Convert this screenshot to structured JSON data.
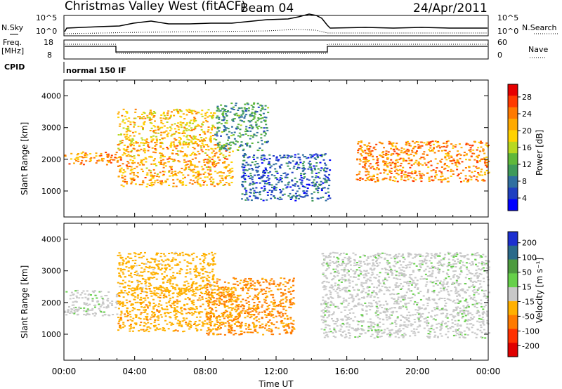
{
  "header": {
    "station": "Christmas Valley West (fitACF)",
    "beam": "Beam 04",
    "date": "24/Apr/2011"
  },
  "summary_panels": {
    "left_labels": [
      "N.Sky",
      "Freq.",
      "[MHz]",
      "CPID"
    ],
    "nsky_ticks": [
      "10^5",
      "10^0"
    ],
    "freq_ticks": [
      "18",
      "8"
    ],
    "right_labels": [
      "N.Search",
      "Nave"
    ],
    "nsearch_ticks": [
      "10^5",
      "10^0"
    ],
    "nave_ticks": [
      "60",
      "0"
    ],
    "cpid_text": "normal 150 IF"
  },
  "colorbars": {
    "power": {
      "label": "Power [dB]",
      "ticks": [
        "28",
        "24",
        "20",
        "16",
        "12",
        "8",
        "4"
      ],
      "colors": [
        "#e60000",
        "#ff3a00",
        "#ff7a00",
        "#ffaa00",
        "#ffd200",
        "#b8d820",
        "#5fb83a",
        "#3e9a5a",
        "#2f6fa0",
        "#1f3fc0",
        "#0000ff"
      ]
    },
    "velocity": {
      "label": "Velocity [m s⁻¹]",
      "ticks": [
        "200",
        "100",
        "50",
        "15",
        "-15",
        "-50",
        "-100",
        "-200"
      ],
      "colors": [
        "#1c2fd0",
        "#2a6a8a",
        "#4d9b3f",
        "#66d04a",
        "#c8c8c8",
        "#ffb000",
        "#ff7a00",
        "#ff3000",
        "#e00000"
      ]
    }
  },
  "chart_data": [
    {
      "type": "heatmap",
      "name": "power",
      "ylabel": "Slant Range [km]",
      "y_ticks": [
        "1000",
        "2000",
        "3000",
        "4000"
      ],
      "ylim": [
        180,
        4500
      ],
      "xlim": [
        0,
        24
      ],
      "x_ticks": [
        "00:00",
        "04:00",
        "08:00",
        "12:00",
        "16:00",
        "20:00",
        "00:00"
      ],
      "xlabel": "Time UT",
      "echo_bands": [
        {
          "t0": 0.0,
          "t1": 3.0,
          "r0": 1850,
          "r1": 2250,
          "power_db": 28
        },
        {
          "t0": 3.0,
          "t1": 9.5,
          "r0": 1150,
          "r1": 2500,
          "power_db": 26
        },
        {
          "t0": 3.0,
          "t1": 8.5,
          "r0": 2500,
          "r1": 3600,
          "power_db": 24
        },
        {
          "t0": 8.5,
          "t1": 11.5,
          "r0": 2300,
          "r1": 3800,
          "power_db": 14
        },
        {
          "t0": 10.0,
          "t1": 15.0,
          "r0": 700,
          "r1": 2200,
          "power_db": 10
        },
        {
          "t0": 16.5,
          "t1": 24.0,
          "r0": 1300,
          "r1": 2600,
          "power_db": 28
        }
      ]
    },
    {
      "type": "heatmap",
      "name": "velocity",
      "ylabel": "Slant Range [km]",
      "y_ticks": [
        "1000",
        "2000",
        "3000",
        "4000"
      ],
      "ylim": [
        180,
        4500
      ],
      "xlim": [
        0,
        24
      ],
      "x_ticks": [
        "00:00",
        "04:00",
        "08:00",
        "12:00",
        "16:00",
        "20:00",
        "00:00"
      ],
      "xlabel": "Time UT",
      "echo_bands": [
        {
          "t0": 0.0,
          "t1": 3.0,
          "r0": 1600,
          "r1": 2400,
          "velocity": 0
        },
        {
          "t0": 3.0,
          "t1": 8.5,
          "r0": 2300,
          "r1": 3600,
          "velocity": -50
        },
        {
          "t0": 3.0,
          "t1": 10.0,
          "r0": 1100,
          "r1": 2500,
          "velocity": -60
        },
        {
          "t0": 8.0,
          "t1": 13.0,
          "r0": 1000,
          "r1": 2800,
          "velocity": -80
        },
        {
          "t0": 14.5,
          "t1": 24.0,
          "r0": 900,
          "r1": 3600,
          "velocity": 0
        }
      ]
    }
  ]
}
